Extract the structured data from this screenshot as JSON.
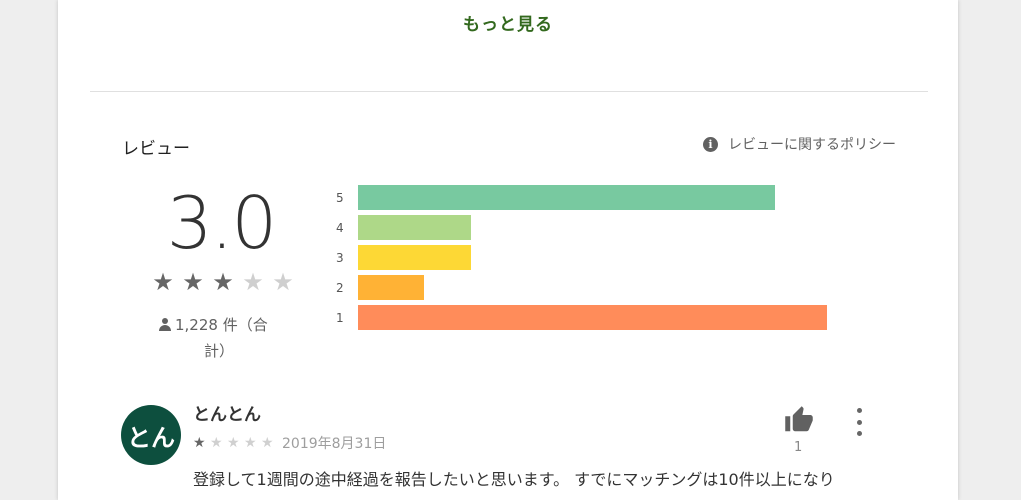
{
  "more_button": "もっと見る",
  "reviews_section": {
    "title": "レビュー",
    "policy_link": "レビューに関するポリシー",
    "info_icon_glyph": "i"
  },
  "rating": {
    "score": "3.0",
    "stars": 3,
    "stars_max": 5,
    "count_line1": "1,228 件（合",
    "count_line2": "計）"
  },
  "histogram": [
    {
      "label": "5",
      "fraction": 0.89,
      "color": "#78c9a0"
    },
    {
      "label": "4",
      "fraction": 0.24,
      "color": "#aed888"
    },
    {
      "label": "3",
      "fraction": 0.24,
      "color": "#fdd835"
    },
    {
      "label": "2",
      "fraction": 0.14,
      "color": "#ffb235"
    },
    {
      "label": "1",
      "fraction": 1.0,
      "color": "#ff8c5a"
    }
  ],
  "review": {
    "avatar_text": "とん",
    "author": "とんとん",
    "stars": 1,
    "stars_max": 5,
    "date": "2019年8月31日",
    "helpful_count": "1",
    "text": "登録して1週間の途中経過を報告したいと思います。 すでにマッチングは10件以上になり"
  }
}
